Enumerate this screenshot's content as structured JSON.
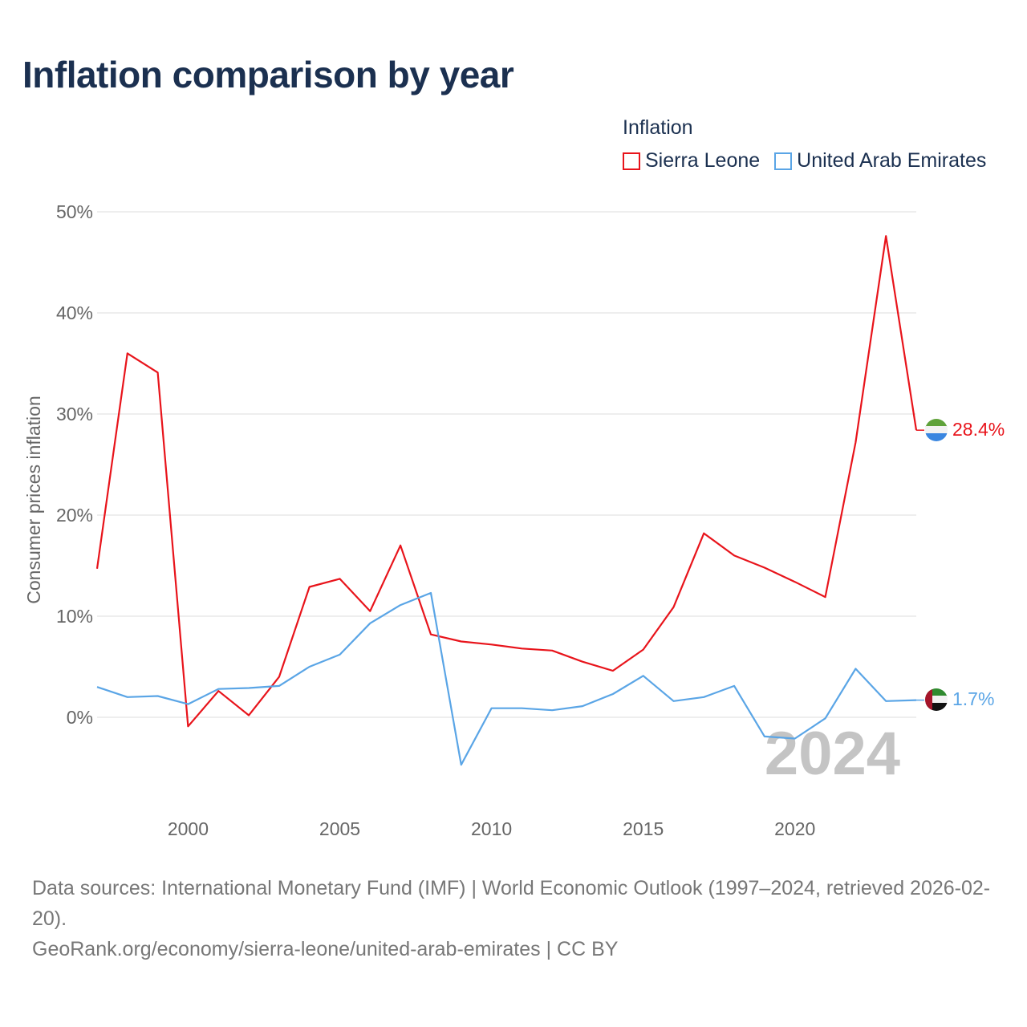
{
  "title": "Inflation comparison by year",
  "legend": {
    "title": "Inflation",
    "items": [
      {
        "label": "Sierra Leone",
        "color": "#e8141b"
      },
      {
        "label": "United Arab Emirates",
        "color": "#5aa5e6"
      }
    ]
  },
  "chart_data": {
    "type": "line",
    "title": "Inflation comparison by year",
    "xlabel": "",
    "ylabel": "Consumer prices inflation",
    "xlim": [
      1997,
      2024
    ],
    "ylim": [
      -8,
      50
    ],
    "y_ticks": [
      0,
      10,
      20,
      30,
      40,
      50
    ],
    "y_tick_labels": [
      "0%",
      "10%",
      "20%",
      "30%",
      "40%",
      "50%"
    ],
    "x_ticks": [
      2000,
      2005,
      2010,
      2015,
      2020
    ],
    "x_tick_labels": [
      "2000",
      "2005",
      "2010",
      "2015",
      "2020"
    ],
    "grid": true,
    "watermark": "2024",
    "x": [
      1997,
      1998,
      1999,
      2000,
      2001,
      2002,
      2003,
      2004,
      2005,
      2006,
      2007,
      2008,
      2009,
      2010,
      2011,
      2012,
      2013,
      2014,
      2015,
      2016,
      2017,
      2018,
      2019,
      2020,
      2021,
      2022,
      2023,
      2024
    ],
    "series": [
      {
        "name": "Sierra Leone",
        "color": "#e8141b",
        "end_label": "28.4%",
        "values": [
          14.7,
          36.0,
          34.1,
          -0.9,
          2.6,
          0.2,
          4.0,
          12.9,
          13.7,
          10.5,
          17.0,
          8.2,
          7.5,
          7.2,
          6.8,
          6.6,
          5.5,
          4.6,
          6.7,
          10.9,
          18.2,
          16.0,
          14.8,
          13.4,
          11.9,
          27.2,
          47.6,
          28.4
        ]
      },
      {
        "name": "United Arab Emirates",
        "color": "#5aa5e6",
        "end_label": "1.7%",
        "values": [
          3.0,
          2.0,
          2.1,
          1.3,
          2.8,
          2.9,
          3.1,
          5.0,
          6.2,
          9.3,
          11.1,
          12.3,
          -4.7,
          0.9,
          0.9,
          0.7,
          1.1,
          2.3,
          4.1,
          1.6,
          2.0,
          3.1,
          -1.9,
          -2.1,
          -0.1,
          4.8,
          1.6,
          1.7
        ]
      }
    ]
  },
  "footer": {
    "sources": "Data sources: International Monetary Fund (IMF) | World Economic Outlook (1997–2024, retrieved 2026-02-20).",
    "url": "GeoRank.org/economy/sierra-leone/united-arab-emirates | CC BY"
  }
}
